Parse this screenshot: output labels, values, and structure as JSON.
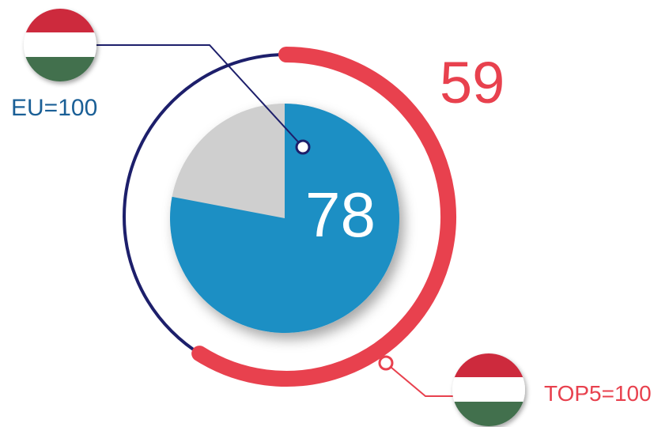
{
  "chart_data": {
    "type": "pie",
    "values": [
      78,
      22
    ],
    "eu_index": "78",
    "top5_index": "59",
    "top5_arc_value": 59,
    "labels": {
      "eu_reference": "EU=100",
      "top5_reference": "TOP5=100"
    }
  },
  "colors": {
    "pie_fill": "#1a8fc4",
    "pie_rest": "#cfcfcf",
    "ring_navy": "#1d1f6b",
    "ring_red": "#e8414e",
    "flag_red": "#cd2a3e",
    "flag_white": "#ffffff",
    "flag_green": "#436f4d"
  },
  "icons": {
    "eu_flag": "hungary-flag-icon",
    "top5_flag": "hungary-flag-icon"
  }
}
